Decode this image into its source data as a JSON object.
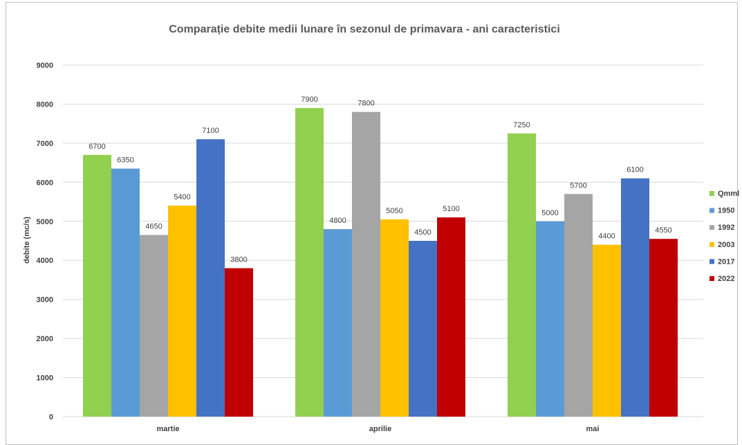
{
  "chart_data": {
    "type": "bar",
    "title": "Comparație debite medii lunare în sezonul de primavara - ani caracteristici",
    "xlabel": "",
    "ylabel": "debite (mc/s)",
    "ylim": [
      0,
      9000
    ],
    "yticks": [
      0,
      1000,
      2000,
      3000,
      4000,
      5000,
      6000,
      7000,
      8000,
      9000
    ],
    "grid": true,
    "legend_position": "right",
    "categories": [
      "martie",
      "aprilie",
      "mai"
    ],
    "series": [
      {
        "name": "Qmml",
        "color": "#92d050",
        "values": [
          6700,
          7900,
          7250
        ]
      },
      {
        "name": "1950",
        "color": "#5b9bd5",
        "values": [
          6350,
          4800,
          5000
        ]
      },
      {
        "name": "1992",
        "color": "#a5a5a5",
        "values": [
          4650,
          7800,
          5700
        ]
      },
      {
        "name": "2003",
        "color": "#ffc000",
        "values": [
          5400,
          5050,
          4400
        ]
      },
      {
        "name": "2017",
        "color": "#4472c4",
        "values": [
          7100,
          4500,
          6100
        ]
      },
      {
        "name": "2022",
        "color": "#c00000",
        "values": [
          3800,
          5100,
          4550
        ]
      }
    ]
  }
}
